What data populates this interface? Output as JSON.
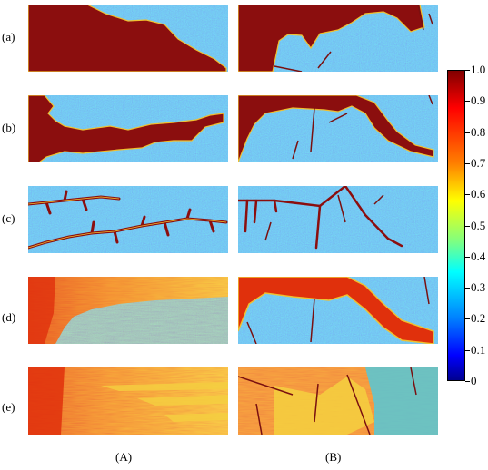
{
  "row_labels": [
    "(a)",
    "(b)",
    "(c)",
    "(d)",
    "(e)"
  ],
  "column_labels": [
    "(A)",
    "(B)"
  ],
  "colorbar": {
    "ticks": [
      "1.0",
      "0.9",
      "0.8",
      "0.7",
      "0.6",
      "0.5",
      "0.4",
      "0.3",
      "0.2",
      "0.1",
      "0"
    ],
    "colormap": [
      "#00008f",
      "#0000ff",
      "#0080ff",
      "#00ffff",
      "#80ff80",
      "#ffff00",
      "#ff8000",
      "#ff0000",
      "#800000"
    ]
  },
  "colors": {
    "field": "#3aa0ef",
    "saturated": "#8b0e0e",
    "edge": "#f0c030",
    "warm": "#f07020",
    "fracture": "#7a1010"
  }
}
